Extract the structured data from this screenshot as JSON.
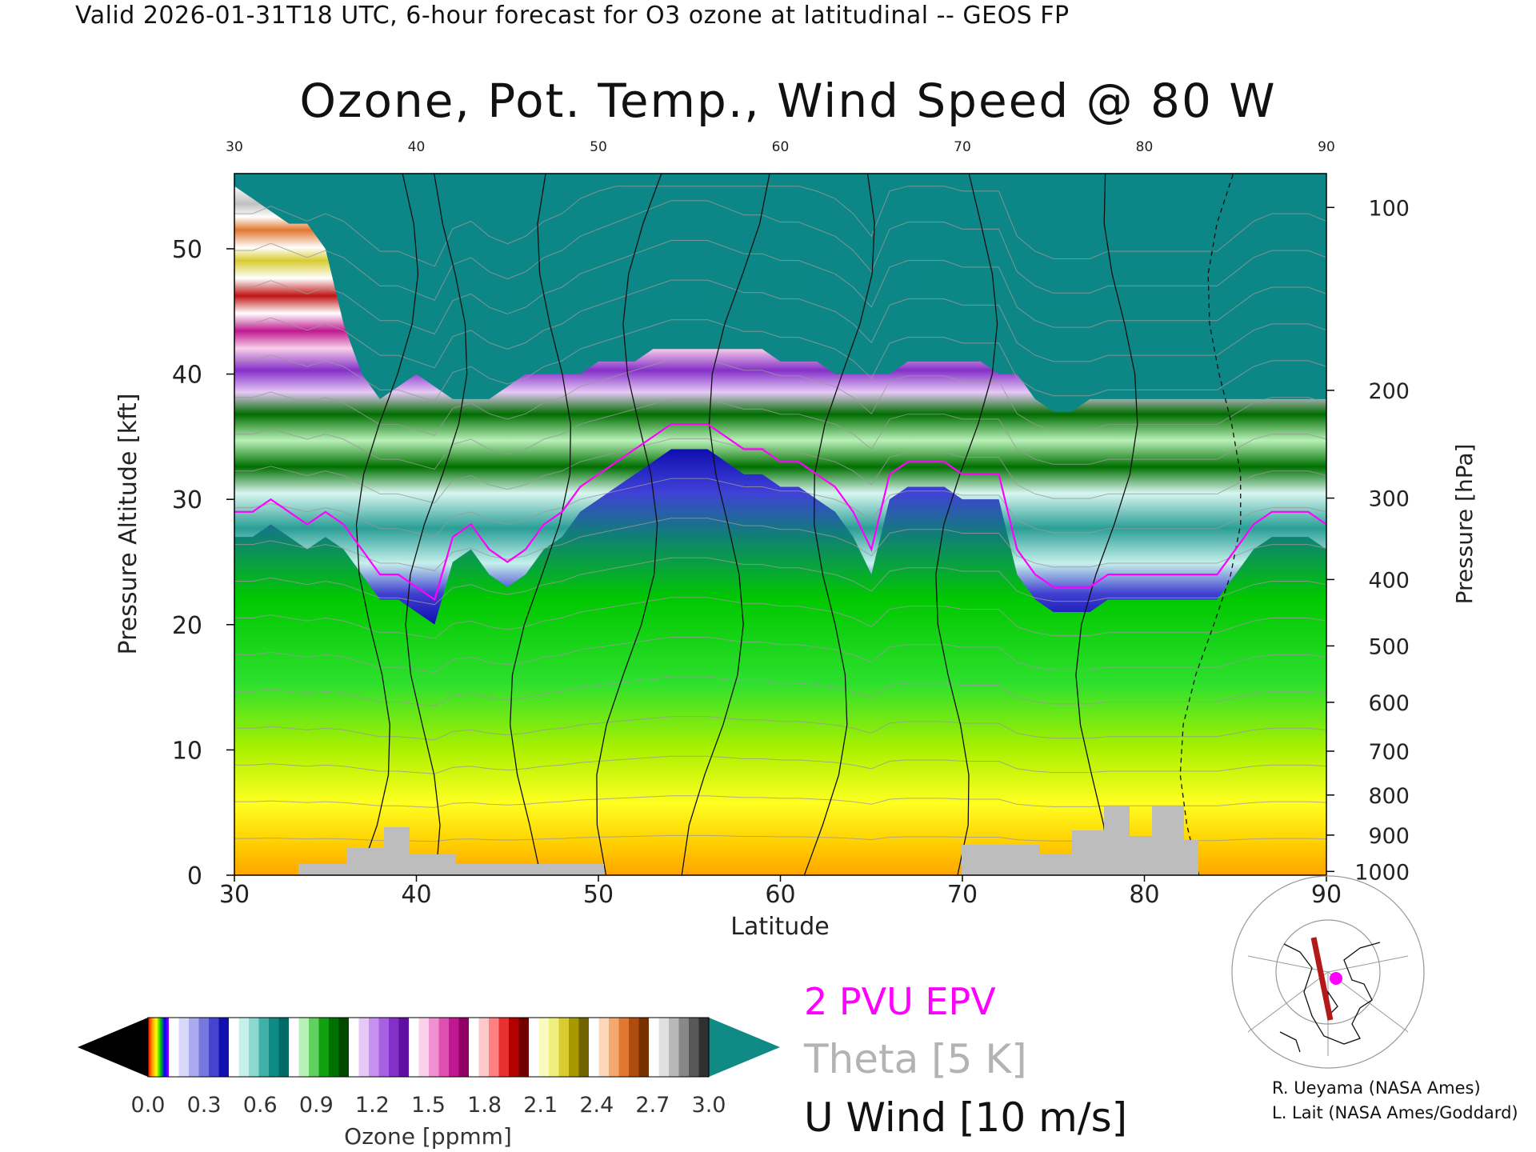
{
  "header": {
    "valid_line": "Valid 2026-01-31T18 UTC, 6-hour forecast for O3 ozone at latitudinal -- GEOS FP"
  },
  "chart_data": {
    "type": "heatmap",
    "title": "Ozone, Pot. Temp., Wind Speed @ 80 W",
    "xlabel": "Latitude",
    "ylabel": "Pressure Altitude [kft]",
    "y2label": "Pressure [hPa]",
    "xlim": [
      30,
      90
    ],
    "ylim": [
      0,
      56
    ],
    "x_ticks": [
      30,
      40,
      50,
      60,
      70,
      80,
      90
    ],
    "y_ticks": [
      0,
      10,
      20,
      30,
      40,
      50
    ],
    "pressure_ticks": [
      {
        "label": "100",
        "kft": 53.3
      },
      {
        "label": "200",
        "kft": 38.7
      },
      {
        "label": "300",
        "kft": 30.1
      },
      {
        "label": "400",
        "kft": 23.6
      },
      {
        "label": "500",
        "kft": 18.3
      },
      {
        "label": "600",
        "kft": 13.8
      },
      {
        "label": "700",
        "kft": 9.9
      },
      {
        "label": "800",
        "kft": 6.4
      },
      {
        "label": "900",
        "kft": 3.2
      },
      {
        "label": "1000",
        "kft": 0.3
      }
    ],
    "colorbar": {
      "label": "Ozone [ppmm]",
      "ticks": [
        "0.0",
        "0.3",
        "0.6",
        "0.9",
        "1.2",
        "1.5",
        "1.8",
        "2.1",
        "2.4",
        "2.7",
        "3.0"
      ],
      "colors": [
        "#ff0000",
        "#ff8c00",
        "#ffff00",
        "#00cc00",
        "#0000ff",
        "#8b00ff",
        "#ffffff",
        "#d8d8f8",
        "#aaaaee",
        "#7777e0",
        "#4444d0",
        "#1111b0",
        "#ffffff",
        "#c6f0ec",
        "#8ad8d0",
        "#40b0a8",
        "#108a84",
        "#006a66",
        "#ffffff",
        "#b8f0b8",
        "#60d060",
        "#10a010",
        "#007000",
        "#004800",
        "#ffffff",
        "#e6c8f6",
        "#c890ee",
        "#a660e0",
        "#8430c8",
        "#6010a0",
        "#ffffff",
        "#fad0ea",
        "#f090d0",
        "#e050b0",
        "#c01890",
        "#900066",
        "#ffffff",
        "#ffc8c8",
        "#ff8080",
        "#e83030",
        "#b40000",
        "#700000",
        "#ffffff",
        "#fafac0",
        "#f0ee80",
        "#d8cc30",
        "#a89800",
        "#706400",
        "#ffffff",
        "#fcd8b8",
        "#f4a870",
        "#e07830",
        "#b04c10",
        "#783000",
        "#ffffff",
        "#e0e0e0",
        "#b8b8b8",
        "#888888",
        "#585858",
        "#303030"
      ]
    },
    "tropopause_boundary": {
      "lat": [
        30,
        31,
        32,
        33,
        34,
        35,
        36,
        37,
        38,
        39,
        40,
        41,
        42,
        43,
        44,
        45,
        46,
        47,
        48,
        49,
        50,
        51,
        52,
        53,
        54,
        55,
        56,
        57,
        58,
        59,
        60,
        61,
        62,
        63,
        64,
        65,
        66,
        67,
        68,
        69,
        70,
        71,
        72,
        73,
        74,
        75,
        76,
        77,
        78,
        79,
        80,
        81,
        82,
        83,
        84,
        85,
        86,
        87,
        88,
        89,
        90
      ],
      "kft": [
        27,
        27,
        28,
        27,
        26,
        27,
        26,
        24,
        22,
        22,
        21,
        20,
        25,
        26,
        24,
        23,
        24,
        26,
        27,
        29,
        30,
        31,
        32,
        33,
        34,
        34,
        34,
        33,
        32,
        32,
        31,
        31,
        30,
        29,
        27,
        24,
        30,
        31,
        31,
        31,
        30,
        30,
        30,
        24,
        22,
        21,
        21,
        21,
        22,
        22,
        22,
        22,
        22,
        22,
        22,
        24,
        26,
        27,
        27,
        27,
        26
      ]
    },
    "stratosphere_top": {
      "kft": [
        55,
        54,
        53,
        52,
        52,
        50,
        44,
        40,
        38,
        39,
        40,
        39,
        38,
        38,
        38,
        39,
        40,
        40,
        40,
        40,
        41,
        41,
        41,
        42,
        42,
        42,
        42,
        42,
        42,
        42,
        41,
        41,
        41,
        40,
        40,
        40,
        40,
        41,
        41,
        41,
        41,
        41,
        40,
        40,
        38,
        37,
        37,
        38,
        38,
        38,
        38,
        38,
        38,
        38,
        38,
        38,
        38,
        38,
        38,
        38,
        38
      ]
    },
    "annotations": [
      "2 PVU EPV",
      "Theta [5 K]",
      "U Wind [10 m/s]"
    ]
  },
  "legend": {
    "epv": "2 PVU EPV",
    "theta": "Theta [5 K]",
    "uwind": "U Wind [10 m/s]"
  },
  "credits": {
    "line1": "R. Ueyama (NASA Ames)",
    "line2": "L. Lait (NASA Ames/Goddard)"
  }
}
